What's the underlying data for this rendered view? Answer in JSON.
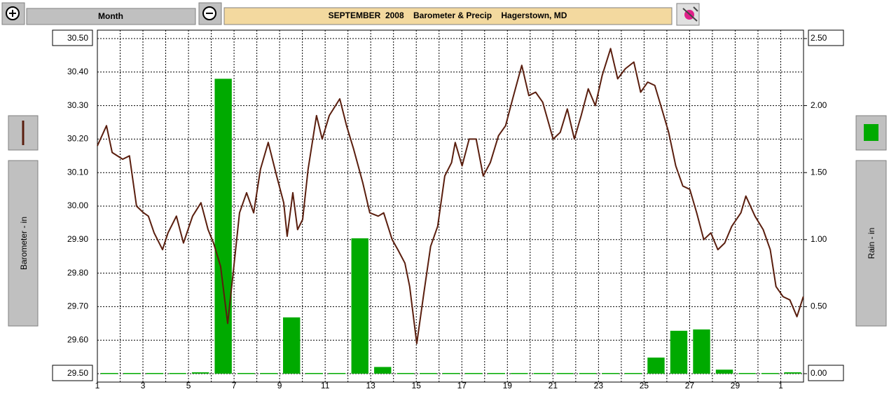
{
  "toolbar": {
    "period": "Month"
  },
  "chart_data": {
    "type": "line",
    "title": "SEPTEMBER  2008    Barometer & Precip    Hagerstown, MD",
    "ylabel": "Barometer - in",
    "y2label": "Rain - in",
    "xlim": [
      1,
      32
    ],
    "xticks": [
      1,
      3,
      5,
      7,
      9,
      11,
      13,
      15,
      17,
      19,
      21,
      23,
      25,
      27,
      29,
      {
        "value": 31,
        "label": "1"
      }
    ],
    "x_minor_ticks": [
      2,
      4,
      6,
      8,
      10,
      12,
      14,
      16,
      18,
      20,
      22,
      24,
      26,
      28,
      30
    ],
    "ylim": [
      29.5,
      30.5
    ],
    "yticks": [
      {
        "value": 29.5,
        "label": "29.50"
      },
      {
        "value": 29.6,
        "label": "29.60"
      },
      {
        "value": 29.7,
        "label": "29.70"
      },
      {
        "value": 29.8,
        "label": "29.80"
      },
      {
        "value": 29.9,
        "label": "29.90"
      },
      {
        "value": 30.0,
        "label": "30.00"
      },
      {
        "value": 30.1,
        "label": "30.10"
      },
      {
        "value": 30.2,
        "label": "30.20"
      },
      {
        "value": 30.3,
        "label": "30.30"
      },
      {
        "value": 30.4,
        "label": "30.40"
      },
      {
        "value": 30.5,
        "label": "30.50"
      }
    ],
    "y2lim": [
      0,
      2.5
    ],
    "y2ticks": [
      {
        "value": 0,
        "label": "0.00"
      },
      {
        "value": 0.5,
        "label": "0.50"
      },
      {
        "value": 1.0,
        "label": "1.00"
      },
      {
        "value": 1.5,
        "label": "1.50"
      },
      {
        "value": 2.0,
        "label": "2.00"
      },
      {
        "value": 2.5,
        "label": "2.50"
      }
    ],
    "grid": true,
    "series": [
      {
        "type": "line",
        "color": "#5a1e0e",
        "x": [
          1.0,
          1.4,
          1.65,
          2.11,
          2.41,
          2.72,
          3.03,
          3.24,
          3.49,
          3.86,
          4.1,
          4.47,
          4.78,
          5.18,
          5.55,
          5.86,
          6.1,
          6.41,
          6.72,
          6.96,
          7.24,
          7.55,
          7.86,
          8.16,
          8.5,
          8.87,
          9.18,
          9.33,
          9.58,
          9.79,
          10.01,
          10.25,
          10.62,
          10.87,
          11.18,
          11.64,
          11.94,
          12.25,
          12.65,
          12.96,
          13.33,
          13.57,
          13.94,
          14.19,
          14.5,
          14.71,
          15.02,
          15.33,
          15.63,
          15.94,
          16.25,
          16.55,
          16.71,
          17.01,
          17.32,
          17.63,
          17.94,
          18.25,
          18.61,
          18.92,
          19.23,
          19.63,
          19.94,
          20.24,
          20.55,
          21.01,
          21.32,
          21.63,
          21.94,
          22.24,
          22.55,
          22.86,
          23.16,
          23.53,
          23.84,
          24.18,
          24.55,
          24.85,
          25.16,
          25.47,
          25.78,
          26.08,
          26.39,
          26.7,
          27.01,
          27.31,
          27.62,
          27.93,
          28.24,
          28.54,
          28.85,
          29.25,
          29.47,
          29.87,
          30.23,
          30.54,
          30.79,
          31.1,
          31.4,
          31.71,
          31.99
        ],
        "values": [
          30.18,
          30.24,
          30.16,
          30.14,
          30.15,
          30.0,
          29.98,
          29.97,
          29.92,
          29.87,
          29.92,
          29.97,
          29.89,
          29.97,
          30.01,
          29.93,
          29.89,
          29.82,
          29.65,
          29.8,
          29.98,
          30.04,
          29.98,
          30.11,
          30.19,
          30.09,
          30.01,
          29.91,
          30.04,
          29.93,
          29.96,
          30.11,
          30.27,
          30.2,
          30.27,
          30.32,
          30.24,
          30.17,
          30.07,
          29.98,
          29.97,
          29.98,
          29.9,
          29.87,
          29.83,
          29.76,
          29.59,
          29.74,
          29.88,
          29.94,
          30.09,
          30.13,
          30.19,
          30.12,
          30.2,
          30.2,
          30.09,
          30.13,
          30.21,
          30.24,
          30.32,
          30.42,
          30.33,
          30.34,
          30.31,
          30.2,
          30.22,
          30.29,
          30.2,
          30.27,
          30.35,
          30.3,
          30.39,
          30.47,
          30.38,
          30.41,
          30.43,
          30.34,
          30.37,
          30.36,
          30.29,
          30.22,
          30.12,
          30.06,
          30.05,
          29.98,
          29.9,
          29.92,
          29.87,
          29.89,
          29.94,
          29.98,
          30.03,
          29.97,
          29.93,
          29.87,
          29.76,
          29.73,
          29.72,
          29.67,
          29.73
        ]
      },
      {
        "type": "bar",
        "axis": "y2",
        "color": "#00aa00",
        "x": [
          1,
          2,
          3,
          4,
          5,
          6,
          7,
          8,
          9,
          10,
          11,
          12,
          13,
          14,
          15,
          16,
          17,
          18,
          19,
          20,
          21,
          22,
          23,
          24,
          25,
          26,
          27,
          28,
          29,
          30,
          31
        ],
        "values": [
          0,
          0,
          0,
          0,
          0.01,
          2.2,
          0,
          0,
          0.42,
          0,
          0,
          1.01,
          0.05,
          0,
          0,
          0,
          0,
          0,
          0,
          0,
          0,
          0,
          0,
          0,
          0.12,
          0.32,
          0.33,
          0.03,
          0,
          0,
          0.01
        ]
      }
    ]
  }
}
